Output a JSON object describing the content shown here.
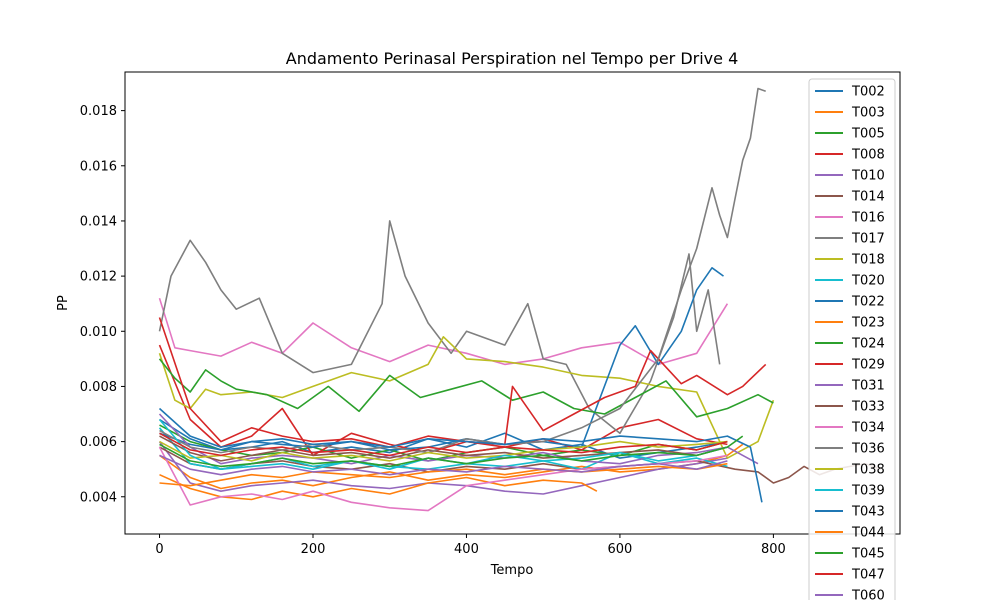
{
  "chart_data": {
    "type": "line",
    "title": "Andamento Perinasal Perspiration nel Tempo per Drive 4",
    "xlabel": "Tempo",
    "ylabel": "PP",
    "xlim": [
      -45,
      965
    ],
    "ylim": [
      0.00265,
      0.0194
    ],
    "xticks": [
      0,
      200,
      400,
      600,
      800
    ],
    "yticks": [
      0.004,
      0.006,
      0.008,
      0.01,
      0.012,
      0.014,
      0.016,
      0.018
    ],
    "xtick_labels": [
      "0",
      "200",
      "400",
      "600",
      "800"
    ],
    "ytick_labels": [
      "0.004",
      "0.006",
      "0.008",
      "0.010",
      "0.012",
      "0.014",
      "0.016",
      "0.018"
    ],
    "grid": false,
    "legend": "top-right (overflowing below the plot)",
    "series": [
      {
        "name": "T002",
        "color": "#1f77b4",
        "x": [
          0,
          40,
          80,
          120,
          160,
          200,
          250,
          300,
          350,
          400,
          450,
          500,
          550,
          600,
          650,
          700,
          740
        ],
        "values": [
          0.0068,
          0.0061,
          0.0057,
          0.0058,
          0.006,
          0.0056,
          0.0058,
          0.0056,
          0.0061,
          0.0058,
          0.0063,
          0.0057,
          0.0059,
          0.0054,
          0.0056,
          0.0058,
          0.006
        ]
      },
      {
        "name": "T003",
        "color": "#ff7f0e",
        "x": [
          0,
          40,
          80,
          120,
          160,
          200,
          250,
          300,
          350,
          400,
          450,
          500,
          550,
          600,
          650,
          700,
          740,
          760
        ],
        "values": [
          0.0055,
          0.0047,
          0.0043,
          0.0045,
          0.0046,
          0.0044,
          0.0047,
          0.0049,
          0.0046,
          0.0048,
          0.0047,
          0.0049,
          0.0051,
          0.0049,
          0.005,
          0.0052,
          0.0055,
          0.0059
        ]
      },
      {
        "name": "T005",
        "color": "#2ca02c",
        "x": [
          0,
          40,
          80,
          120,
          160,
          200,
          250,
          300,
          350,
          400,
          450,
          500,
          550,
          600,
          650,
          700,
          740
        ],
        "values": [
          0.0066,
          0.006,
          0.0057,
          0.0055,
          0.0056,
          0.0058,
          0.0054,
          0.0057,
          0.0053,
          0.0056,
          0.0058,
          0.0055,
          0.0057,
          0.0055,
          0.0059,
          0.0057,
          0.006
        ]
      },
      {
        "name": "T008",
        "color": "#d62728",
        "x": [
          0,
          40,
          80,
          120,
          160,
          200,
          250,
          300,
          350,
          400,
          450,
          500,
          550,
          600,
          650,
          700,
          740
        ],
        "values": [
          0.0095,
          0.0068,
          0.0058,
          0.0062,
          0.0072,
          0.0055,
          0.0063,
          0.0059,
          0.0056,
          0.006,
          0.0058,
          0.0061,
          0.0057,
          0.0065,
          0.0068,
          0.0061,
          0.0059
        ]
      },
      {
        "name": "T010",
        "color": "#9467bd",
        "x": [
          0,
          40,
          80,
          120,
          160,
          200,
          250,
          300,
          350,
          400,
          450,
          500,
          550,
          600,
          650,
          700,
          740
        ],
        "values": [
          0.006,
          0.0045,
          0.0042,
          0.0044,
          0.0045,
          0.0046,
          0.0044,
          0.0043,
          0.0045,
          0.0044,
          0.0042,
          0.0041,
          0.0044,
          0.0047,
          0.005,
          0.0052,
          0.0054
        ]
      },
      {
        "name": "T014",
        "color": "#8c564b",
        "x": [
          0,
          40,
          80,
          120,
          160,
          200,
          250,
          300,
          350,
          400,
          450,
          500,
          550,
          600,
          650,
          700,
          750,
          780,
          800,
          820,
          840,
          860,
          880,
          900,
          920,
          940
        ],
        "values": [
          0.0058,
          0.0052,
          0.005,
          0.0052,
          0.0053,
          0.0051,
          0.005,
          0.0052,
          0.0049,
          0.0051,
          0.005,
          0.0052,
          0.005,
          0.0051,
          0.0052,
          0.0053,
          0.005,
          0.0049,
          0.0045,
          0.0047,
          0.0051,
          0.0048,
          0.005,
          0.0051,
          0.0052,
          0.005
        ]
      },
      {
        "name": "T016",
        "color": "#e377c2",
        "x": [
          0,
          20,
          40,
          80,
          120,
          160,
          200,
          250,
          300,
          350,
          400,
          450,
          500,
          550,
          600,
          650,
          700,
          740
        ],
        "values": [
          0.0112,
          0.0094,
          0.0093,
          0.0091,
          0.0096,
          0.0092,
          0.0103,
          0.0094,
          0.0089,
          0.0095,
          0.0092,
          0.0088,
          0.009,
          0.0094,
          0.0096,
          0.0088,
          0.0092,
          0.011
        ]
      },
      {
        "name": "T017",
        "color": "#7f7f7f",
        "x": [
          0,
          15,
          40,
          60,
          80,
          100,
          130,
          160,
          200,
          250,
          290,
          300,
          320,
          350,
          380,
          400,
          450,
          480,
          500,
          530,
          560,
          600,
          640,
          670,
          690,
          700,
          715,
          730
        ],
        "values": [
          0.01,
          0.012,
          0.0133,
          0.0125,
          0.0115,
          0.0108,
          0.0112,
          0.0092,
          0.0085,
          0.0088,
          0.011,
          0.014,
          0.012,
          0.0103,
          0.0092,
          0.01,
          0.0095,
          0.011,
          0.009,
          0.0088,
          0.0072,
          0.0063,
          0.0082,
          0.0105,
          0.0128,
          0.01,
          0.0115,
          0.0088
        ]
      },
      {
        "name": "T018",
        "color": "#bcbd22",
        "x": [
          0,
          20,
          40,
          60,
          80,
          120,
          160,
          200,
          250,
          300,
          350,
          370,
          400,
          450,
          500,
          550,
          600,
          650,
          700,
          740,
          780,
          800
        ],
        "values": [
          0.0092,
          0.0075,
          0.0072,
          0.0079,
          0.0077,
          0.0078,
          0.0076,
          0.008,
          0.0085,
          0.0082,
          0.0088,
          0.0098,
          0.009,
          0.0089,
          0.0087,
          0.0084,
          0.0083,
          0.008,
          0.0078,
          0.0054,
          0.006,
          0.0075
        ]
      },
      {
        "name": "T020",
        "color": "#17becf",
        "x": [
          0,
          40,
          80,
          120,
          160,
          200,
          250,
          300,
          350,
          400,
          450,
          500,
          550,
          600,
          650,
          700,
          740
        ],
        "values": [
          0.0065,
          0.0052,
          0.005,
          0.0051,
          0.0052,
          0.005,
          0.0053,
          0.0051,
          0.005,
          0.0052,
          0.0051,
          0.0053,
          0.005,
          0.0056,
          0.0052,
          0.0054,
          0.0051
        ]
      },
      {
        "name": "T022",
        "color": "#1f77b4",
        "x": [
          0,
          40,
          80,
          120,
          160,
          200,
          250,
          300,
          350,
          400,
          450,
          500,
          550,
          600,
          620,
          650,
          680,
          700,
          720,
          735
        ],
        "values": [
          0.0063,
          0.0059,
          0.0057,
          0.006,
          0.0059,
          0.0058,
          0.006,
          0.0057,
          0.0058,
          0.0061,
          0.0059,
          0.006,
          0.0058,
          0.0095,
          0.0102,
          0.0088,
          0.01,
          0.0115,
          0.0123,
          0.012
        ]
      },
      {
        "name": "T023",
        "color": "#ff7f0e",
        "x": [
          0,
          40,
          80,
          120,
          160,
          200,
          250,
          300,
          350,
          400,
          450,
          500,
          550,
          570
        ],
        "values": [
          0.0048,
          0.0043,
          0.004,
          0.0039,
          0.0042,
          0.004,
          0.0043,
          0.0041,
          0.0045,
          0.0047,
          0.0044,
          0.0046,
          0.0045,
          0.0042
        ]
      },
      {
        "name": "T024",
        "color": "#2ca02c",
        "x": [
          0,
          20,
          40,
          60,
          80,
          100,
          140,
          180,
          220,
          260,
          300,
          340,
          380,
          420,
          460,
          500,
          540,
          580,
          620,
          660,
          700,
          740,
          780,
          800
        ],
        "values": [
          0.009,
          0.0083,
          0.0078,
          0.0086,
          0.0082,
          0.0079,
          0.0077,
          0.0072,
          0.008,
          0.0071,
          0.0084,
          0.0076,
          0.0079,
          0.0082,
          0.0075,
          0.0078,
          0.0072,
          0.007,
          0.0076,
          0.0082,
          0.0069,
          0.0072,
          0.0077,
          0.0074
        ]
      },
      {
        "name": "T029",
        "color": "#d62728",
        "x": [
          0,
          40,
          80,
          120,
          160,
          200,
          250,
          300,
          350,
          400,
          450,
          460,
          500,
          540,
          580,
          620,
          640,
          680,
          700,
          740,
          760,
          790
        ],
        "values": [
          0.0105,
          0.0072,
          0.006,
          0.0065,
          0.0062,
          0.006,
          0.0061,
          0.0058,
          0.0062,
          0.006,
          0.0059,
          0.008,
          0.0064,
          0.007,
          0.0076,
          0.008,
          0.0093,
          0.0081,
          0.0084,
          0.0077,
          0.008,
          0.0088
        ]
      },
      {
        "name": "T031",
        "color": "#9467bd",
        "x": [
          0,
          40,
          80,
          120,
          160,
          200,
          250,
          300,
          350,
          400,
          450,
          500,
          550,
          600,
          650,
          700,
          740,
          780
        ],
        "values": [
          0.007,
          0.0058,
          0.0052,
          0.0054,
          0.0055,
          0.0054,
          0.0052,
          0.0055,
          0.0053,
          0.0055,
          0.0054,
          0.0056,
          0.0053,
          0.0052,
          0.0055,
          0.0056,
          0.0058,
          0.0052
        ]
      },
      {
        "name": "T033",
        "color": "#8c564b",
        "x": [
          0,
          40,
          80,
          120,
          160,
          200,
          250,
          300,
          350,
          400,
          450,
          500,
          550,
          600,
          650,
          700,
          740
        ],
        "values": [
          0.0062,
          0.0056,
          0.0053,
          0.0055,
          0.0057,
          0.0055,
          0.0056,
          0.0054,
          0.0057,
          0.0055,
          0.0056,
          0.0054,
          0.0055,
          0.0056,
          0.0057,
          0.0055,
          0.0058
        ]
      },
      {
        "name": "T034",
        "color": "#e377c2",
        "x": [
          0,
          40,
          80,
          120,
          160,
          200,
          250,
          300,
          350,
          400,
          450,
          500,
          550,
          600,
          650,
          700,
          740
        ],
        "values": [
          0.0058,
          0.0037,
          0.004,
          0.0041,
          0.0039,
          0.0042,
          0.0038,
          0.0036,
          0.0035,
          0.0044,
          0.0046,
          0.0048,
          0.005,
          0.0051,
          0.0052,
          0.0053,
          0.0055
        ]
      },
      {
        "name": "T036",
        "color": "#7f7f7f",
        "x": [
          0,
          40,
          80,
          120,
          160,
          200,
          250,
          300,
          350,
          400,
          450,
          500,
          550,
          600,
          650,
          680,
          700,
          720,
          730,
          740,
          750,
          760,
          770,
          780,
          790
        ],
        "values": [
          0.0064,
          0.0058,
          0.0056,
          0.0058,
          0.0057,
          0.0059,
          0.0057,
          0.0058,
          0.0056,
          0.0061,
          0.0059,
          0.006,
          0.0065,
          0.0072,
          0.009,
          0.0115,
          0.013,
          0.0152,
          0.0142,
          0.0134,
          0.0148,
          0.0162,
          0.017,
          0.0188,
          0.0187
        ]
      },
      {
        "name": "T038",
        "color": "#bcbd22",
        "x": [
          0,
          40,
          80,
          120,
          160,
          200,
          250,
          300,
          350,
          400,
          450,
          500,
          550,
          600,
          650,
          700,
          740
        ],
        "values": [
          0.006,
          0.0054,
          0.0055,
          0.0053,
          0.0056,
          0.0054,
          0.0055,
          0.0053,
          0.0056,
          0.0054,
          0.0055,
          0.0057,
          0.0058,
          0.006,
          0.0058,
          0.0059,
          0.006
        ]
      },
      {
        "name": "T039",
        "color": "#17becf",
        "x": [
          0,
          40,
          80,
          120,
          160,
          200,
          250,
          300,
          350,
          400,
          450,
          500,
          550,
          600,
          650,
          700,
          740
        ],
        "values": [
          0.0068,
          0.0055,
          0.005,
          0.0052,
          0.0054,
          0.0051,
          0.0053,
          0.005,
          0.0054,
          0.0052,
          0.0055,
          0.0053,
          0.0054,
          0.0056,
          0.0053,
          0.0055,
          0.0058
        ]
      },
      {
        "name": "T043",
        "color": "#1f77b4",
        "x": [
          0,
          40,
          80,
          120,
          160,
          200,
          250,
          300,
          350,
          400,
          450,
          500,
          550,
          600,
          650,
          700,
          740,
          770,
          780,
          785
        ],
        "values": [
          0.0072,
          0.0062,
          0.0058,
          0.006,
          0.0061,
          0.0059,
          0.006,
          0.0058,
          0.0061,
          0.006,
          0.0059,
          0.0061,
          0.006,
          0.0062,
          0.0061,
          0.006,
          0.0062,
          0.0058,
          0.0045,
          0.0038
        ]
      },
      {
        "name": "T044",
        "color": "#ff7f0e",
        "x": [
          0,
          40,
          80,
          120,
          160,
          200,
          250,
          300,
          350,
          400,
          450,
          500,
          550,
          600,
          650,
          700,
          740
        ],
        "values": [
          0.0045,
          0.0044,
          0.0046,
          0.0048,
          0.0047,
          0.0049,
          0.0048,
          0.0047,
          0.0049,
          0.005,
          0.0048,
          0.005,
          0.0049,
          0.005,
          0.0051,
          0.005,
          0.0052
        ]
      },
      {
        "name": "T045",
        "color": "#2ca02c",
        "x": [
          0,
          40,
          80,
          120,
          160,
          200,
          250,
          300,
          350,
          400,
          450,
          500,
          550,
          600,
          650,
          700,
          740,
          760
        ],
        "values": [
          0.0059,
          0.0053,
          0.0051,
          0.0052,
          0.0054,
          0.0052,
          0.0053,
          0.0051,
          0.0054,
          0.0052,
          0.0054,
          0.0055,
          0.0053,
          0.0055,
          0.0056,
          0.0055,
          0.0058,
          0.0062
        ]
      },
      {
        "name": "T047",
        "color": "#d62728",
        "x": [
          0,
          40,
          80,
          120,
          160,
          200,
          250,
          300,
          350,
          400,
          450,
          500,
          550,
          600,
          650,
          700,
          740
        ],
        "values": [
          0.0063,
          0.0057,
          0.0055,
          0.0057,
          0.0058,
          0.0056,
          0.0057,
          0.0055,
          0.0058,
          0.0056,
          0.0058,
          0.0057,
          0.0056,
          0.0058,
          0.0059,
          0.0057,
          0.006
        ]
      },
      {
        "name": "T060",
        "color": "#9467bd",
        "x": [
          0,
          40,
          80,
          120,
          160,
          200,
          250,
          300,
          350,
          400,
          450,
          500,
          550,
          600,
          650,
          700,
          740
        ],
        "values": [
          0.0055,
          0.005,
          0.0048,
          0.005,
          0.0051,
          0.0049,
          0.005,
          0.0048,
          0.005,
          0.0049,
          0.0051,
          0.005,
          0.0049,
          0.0051,
          0.0052,
          0.005,
          0.0053
        ]
      }
    ]
  }
}
